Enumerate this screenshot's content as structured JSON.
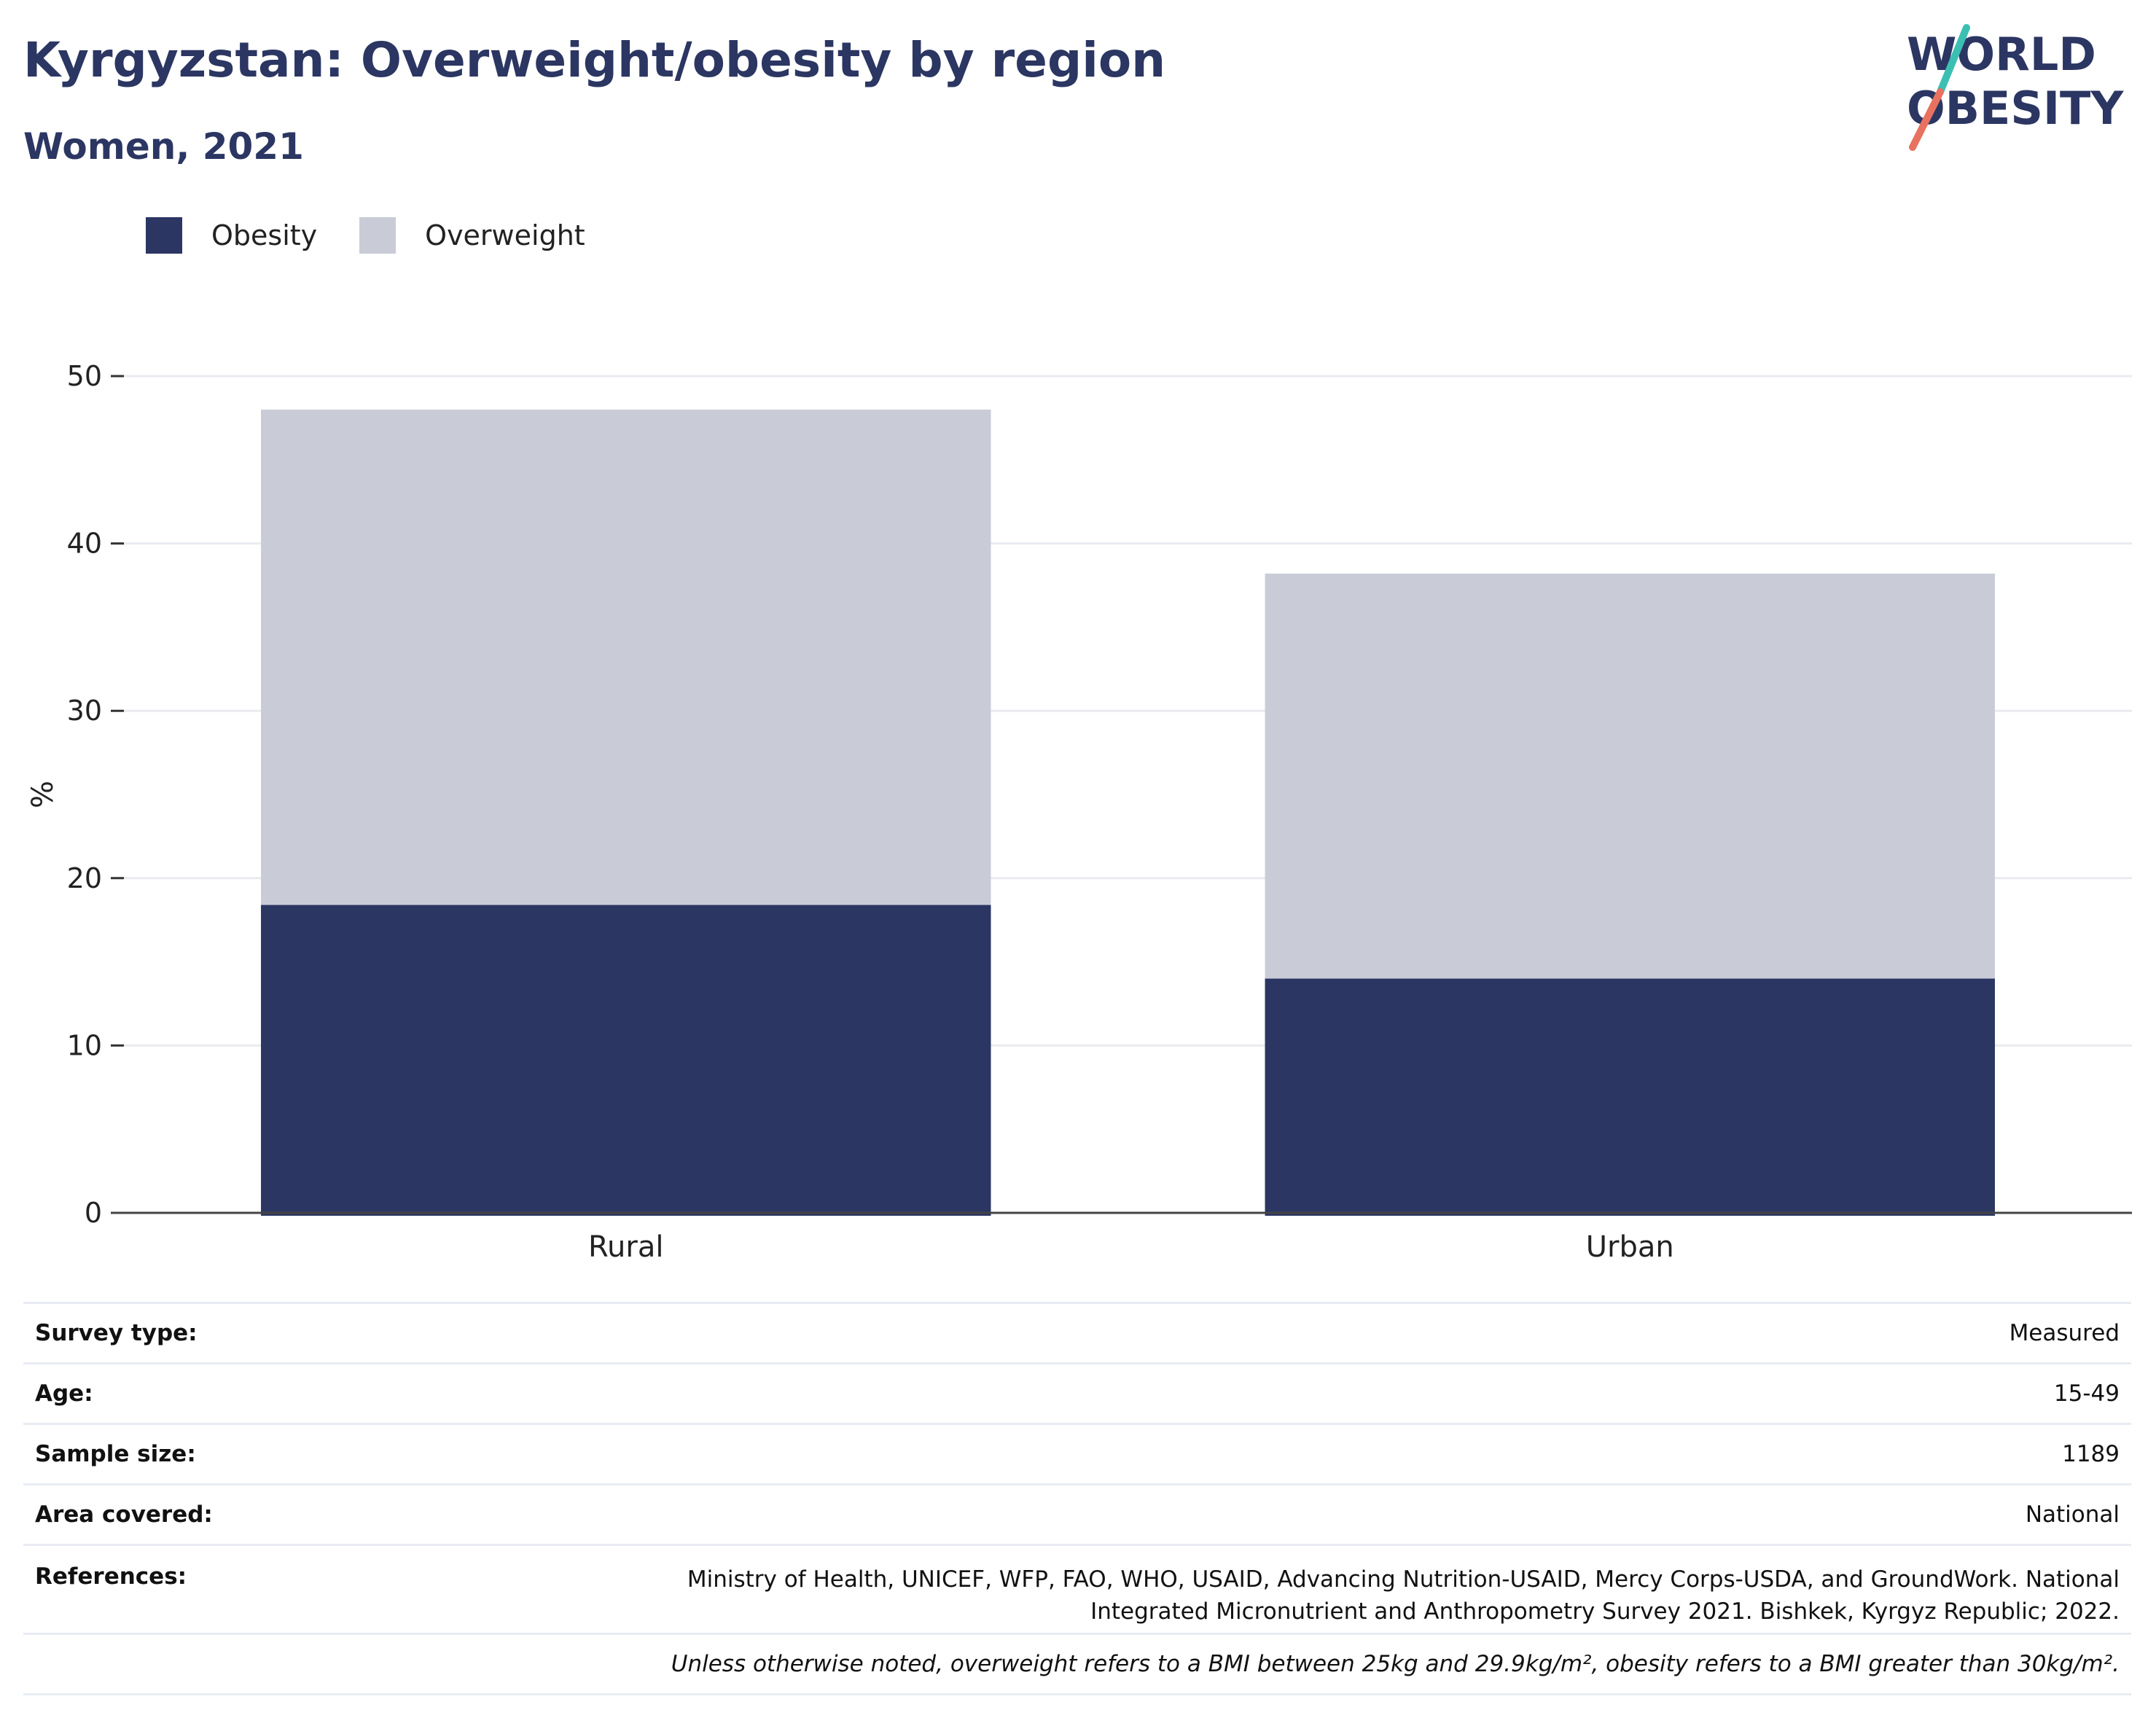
{
  "header": {
    "title": "Kyrgyzstan: Overweight/obesity by region",
    "subtitle": "Women, 2021"
  },
  "logo": {
    "line1": "WORLD",
    "line2": "OBESITY",
    "colors": {
      "text": "#2b3662",
      "slash_top": "#3cbfb3",
      "slash_bottom": "#e8725f"
    }
  },
  "legend": [
    {
      "name": "Obesity",
      "color": "#2b3663"
    },
    {
      "name": "Overweight",
      "color": "#c9ccd7"
    }
  ],
  "chart_data": {
    "type": "bar",
    "stacked": true,
    "categories": [
      "Rural",
      "Urban"
    ],
    "series": [
      {
        "name": "Obesity",
        "values": [
          18.4,
          14.0
        ],
        "color": "#2b3663"
      },
      {
        "name": "Overweight",
        "values": [
          29.6,
          24.2
        ],
        "color": "#c9ccd7"
      }
    ],
    "totals": [
      48.0,
      38.2
    ],
    "xlabel": "",
    "ylabel": "%",
    "ylim": [
      0,
      50
    ],
    "yticks": [
      0,
      10,
      20,
      30,
      40,
      50
    ],
    "grid": true,
    "legend_position": "top-left"
  },
  "info": {
    "survey_type": {
      "label": "Survey type:",
      "value": "Measured"
    },
    "age": {
      "label": "Age:",
      "value": "15-49"
    },
    "sample_size": {
      "label": "Sample size:",
      "value": "1189"
    },
    "area_covered": {
      "label": "Area covered:",
      "value": "National"
    },
    "references": {
      "label": "References:",
      "value": "Ministry of Health, UNICEF, WFP, FAO, WHO, USAID, Advancing Nutrition-USAID, Mercy Corps-USDA, and GroundWork. National Integrated Micronutrient and Anthropometry Survey 2021. Bishkek, Kyrgyz Republic; 2022."
    },
    "note": "Unless otherwise noted, overweight refers to a BMI between 25kg and 29.9kg/m², obesity refers to a BMI greater than 30kg/m²."
  }
}
